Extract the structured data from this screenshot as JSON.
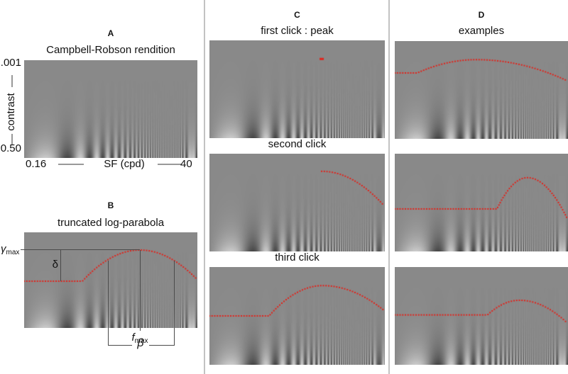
{
  "figure": {
    "panels": {
      "A": {
        "letter": "A",
        "title": "Campbell-Robson rendition",
        "y_axis": {
          "top_label": ".001",
          "label": "contrast",
          "bottom_label": "0.50"
        },
        "x_axis": {
          "left_label": "0.16",
          "label": "SF (cpd)",
          "right_label": "40"
        }
      },
      "B": {
        "letter": "B",
        "title": "truncated log-parabola",
        "annotations": {
          "gamma_max": {
            "symbol": "γ",
            "sub": "max"
          },
          "delta": {
            "symbol": "δ"
          },
          "f_max": {
            "symbol": "f",
            "sub": "max"
          },
          "beta": {
            "symbol": "β"
          }
        }
      },
      "C": {
        "letter": "C",
        "subtitles": [
          "first click : peak",
          "second click",
          "third click"
        ]
      },
      "D": {
        "letter": "D",
        "title": "examples"
      }
    },
    "chart_params": {
      "sf_min_cpd": 0.16,
      "sf_max_cpd": 40,
      "contrast_min": 0.001,
      "contrast_max": 0.5
    },
    "render": {
      "base_gray": 137,
      "freq_lo": 0.006,
      "freq_hi": 1.2,
      "c_lo": 0.001,
      "c_hi": 0.5,
      "dot_size": 2,
      "dot_spacing": 3.7
    },
    "colors": {
      "curve_red": "#e3221a",
      "image_gray": "#8a8a8a",
      "divider": "#c2c2c2",
      "annotation_line": "#4a4a4a"
    },
    "curves": {
      "B": {
        "flat_end": 0.336,
        "flat_y": 0.511,
        "peak_x": 0.668,
        "peak_y": 0.185,
        "end_y": 0.496
      },
      "C1": {
        "dot_only": true,
        "peak_x": 0.64,
        "peak_y": 0.19
      },
      "C2": {
        "start_at_peak": true,
        "peak_x": 0.64,
        "peak_y": 0.18,
        "end_y": 0.54
      },
      "C3": {
        "flat_end": 0.34,
        "flat_y": 0.5,
        "peak_x": 0.645,
        "peak_y": 0.19,
        "end_y": 0.45
      },
      "D1": {
        "flat_end": 0.13,
        "flat_y": 0.326,
        "peak_x": 0.47,
        "peak_y": 0.19,
        "end_y": 0.41
      },
      "D2": {
        "flat_end": 0.59,
        "flat_y": 0.565,
        "peak_x": 0.765,
        "peak_y": 0.245,
        "end_y": 0.68
      },
      "D3": {
        "flat_end": 0.535,
        "flat_y": 0.49,
        "peak_x": 0.72,
        "peak_y": 0.34,
        "end_y": 0.58
      }
    }
  }
}
